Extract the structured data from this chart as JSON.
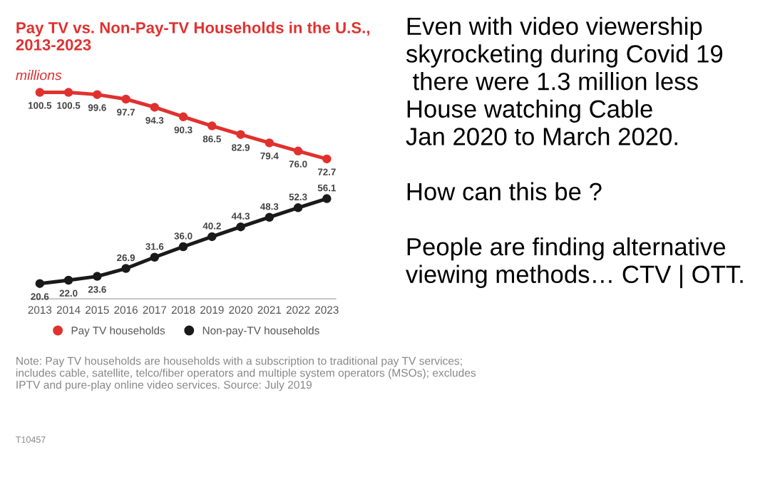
{
  "chart_data": {
    "type": "line",
    "title": "Pay TV vs. Non-Pay-TV Households in the U.S.,\n2013-2023",
    "subtitle": "millions",
    "categories": [
      "2013",
      "2014",
      "2015",
      "2016",
      "2017",
      "2018",
      "2019",
      "2020",
      "2021",
      "2022",
      "2023"
    ],
    "series": [
      {
        "name": "Pay TV households",
        "color": "#e0312f",
        "values": [
          100.5,
          100.5,
          99.6,
          97.7,
          94.3,
          90.3,
          86.5,
          82.9,
          79.4,
          76.0,
          72.7
        ],
        "value_labels": [
          "100.5",
          "100.5",
          "99.6",
          "97.7",
          "94.3",
          "90.3",
          "86.5",
          "82.9",
          "79.4",
          "76.0",
          "72.7"
        ]
      },
      {
        "name": "Non-pay-TV households",
        "color": "#1a1a1a",
        "values": [
          20.6,
          22.0,
          23.6,
          26.9,
          31.6,
          36.0,
          40.2,
          44.3,
          48.3,
          52.3,
          56.1
        ],
        "value_labels": [
          "20.6",
          "22.0",
          "23.6",
          "26.9",
          "31.6",
          "36.0",
          "40.2",
          "44.3",
          "48.3",
          "52.3",
          "56.1"
        ]
      }
    ],
    "marker": "circle",
    "grid": false,
    "legend": "bottom",
    "tick_labels": "x",
    "annotations": [
      "Note: Pay TV households are households with a subscription to traditional pay TV services; includes cable, satellite, telco/fiber operators and multiple system operators (MSOs); excludes IPTV and pure-play online video services. Source: July 2019",
      "T10457",
      "Even with video viewership\nskyrocketing during Covid 19\n there were 1.3 million less\nHouse watching Cable\nJan 2020 to March 2020.\n\nHow can this be ?\n\nPeople are finding alternative\nviewing methods… CTV | OTT."
    ]
  }
}
